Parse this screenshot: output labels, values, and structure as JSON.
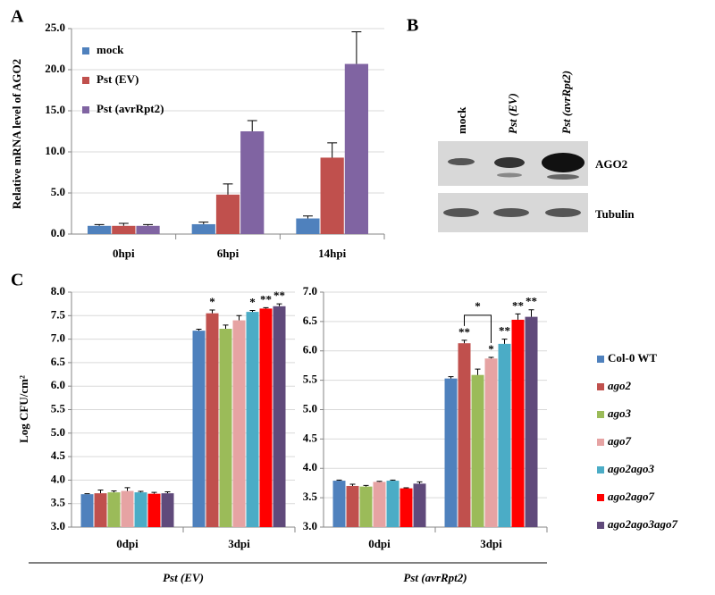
{
  "chart_data": [
    {
      "type": "bar",
      "panel_label": "A",
      "y_label": "Relative mRNA level of AGO2",
      "categories": [
        "0hpi",
        "6hpi",
        "14hpi"
      ],
      "series": [
        {
          "name": "mock",
          "color": "#4f81bd",
          "values": [
            1.0,
            1.2,
            1.9
          ],
          "errors": [
            0.15,
            0.25,
            0.3
          ]
        },
        {
          "name": "Pst (EV)",
          "color": "#c0504d",
          "values": [
            1.0,
            4.8,
            9.3
          ],
          "errors": [
            0.3,
            1.3,
            1.8
          ]
        },
        {
          "name": "Pst (avrRpt2)",
          "color": "#8064a2",
          "values": [
            1.0,
            12.5,
            20.7
          ],
          "errors": [
            0.15,
            1.3,
            3.9
          ]
        }
      ],
      "ylim": [
        0,
        25
      ],
      "yticks": [
        {
          "value": 0,
          "label": "0.0"
        },
        {
          "value": 5,
          "label": "5.0"
        },
        {
          "value": 10,
          "label": "10.0"
        },
        {
          "value": 15,
          "label": "15.0"
        },
        {
          "value": 20,
          "label": "20.0"
        },
        {
          "value": 25,
          "label": "25.0"
        }
      ],
      "grid": true,
      "legend": "upper left"
    },
    {
      "type": "bar",
      "panel_label": "C",
      "y_label": "Log CFU/cm²",
      "group_label": "Pst (EV)",
      "categories": [
        "0dpi",
        "3dpi"
      ],
      "series": [
        {
          "color": "#4f81bd",
          "values": [
            3.7,
            7.18
          ],
          "errors": [
            0.01,
            0.03
          ],
          "significance": [
            null,
            null
          ]
        },
        {
          "color": "#c0504d",
          "values": [
            3.72,
            7.55
          ],
          "errors": [
            0.07,
            0.07
          ],
          "significance": [
            null,
            "*"
          ]
        },
        {
          "color": "#9bbb59",
          "values": [
            3.74,
            7.22
          ],
          "errors": [
            0.03,
            0.08
          ],
          "significance": [
            null,
            null
          ]
        },
        {
          "color": "#e6a3a3",
          "values": [
            3.77,
            7.4
          ],
          "errors": [
            0.07,
            0.1
          ],
          "significance": [
            null,
            null
          ]
        },
        {
          "color": "#4bacc6",
          "values": [
            3.74,
            7.58
          ],
          "errors": [
            0.02,
            0.03
          ],
          "significance": [
            null,
            "*"
          ]
        },
        {
          "color": "#ff0000",
          "values": [
            3.71,
            7.65
          ],
          "errors": [
            0.03,
            0.02
          ],
          "significance": [
            null,
            "**"
          ]
        },
        {
          "color": "#604a7b",
          "values": [
            3.72,
            7.7
          ],
          "errors": [
            0.03,
            0.05
          ],
          "significance": [
            null,
            "**"
          ]
        }
      ],
      "ylim": [
        3.0,
        8.0
      ],
      "yticks": [
        {
          "value": 3,
          "label": "3.0"
        },
        3.5,
        {
          "value": 4,
          "label": "4.0"
        },
        4.5,
        {
          "value": 5,
          "label": "5.0"
        },
        5.5,
        {
          "value": 6,
          "label": "6.0"
        },
        6.5,
        {
          "value": 7,
          "label": "7.0"
        },
        7.5,
        {
          "value": 8,
          "label": "8.0"
        }
      ],
      "grid": true
    },
    {
      "type": "bar",
      "group_label": "Pst (avrRpt2)",
      "bracket_label": "*",
      "categories": [
        "0dpi",
        "3dpi"
      ],
      "series": [
        {
          "name": "Col-0 WT",
          "color": "#4f81bd",
          "values": [
            3.79,
            5.53
          ],
          "errors": [
            0.01,
            0.03
          ],
          "significance": [
            null,
            null
          ]
        },
        {
          "name": "ago2",
          "color": "#c0504d",
          "values": [
            3.7,
            6.13
          ],
          "errors": [
            0.03,
            0.05
          ],
          "significance": [
            null,
            "**"
          ]
        },
        {
          "name": "ago3",
          "color": "#9bbb59",
          "values": [
            3.69,
            5.59
          ],
          "errors": [
            0.02,
            0.1
          ],
          "significance": [
            null,
            null
          ]
        },
        {
          "name": "ago7",
          "color": "#e6a3a3",
          "values": [
            3.77,
            5.87
          ],
          "errors": [
            0.01,
            0.02
          ],
          "significance": [
            null,
            "*"
          ]
        },
        {
          "name": "ago2ago3",
          "color": "#4bacc6",
          "values": [
            3.79,
            6.12
          ],
          "errors": [
            0.01,
            0.08
          ],
          "significance": [
            null,
            "**"
          ]
        },
        {
          "name": "ago2ago7",
          "color": "#ff0000",
          "values": [
            3.66,
            6.53
          ],
          "errors": [
            0.01,
            0.1
          ],
          "significance": [
            null,
            "**"
          ]
        },
        {
          "name": "ago2ago3ago7",
          "color": "#604a7b",
          "values": [
            3.74,
            6.58
          ],
          "errors": [
            0.03,
            0.12
          ],
          "significance": [
            null,
            "**"
          ]
        }
      ],
      "ylim": [
        3.0,
        7.0
      ],
      "yticks": [
        {
          "value": 3,
          "label": "3.0"
        },
        3.5,
        {
          "value": 4,
          "label": "4.0"
        },
        4.5,
        {
          "value": 5,
          "label": "5.0"
        },
        5.5,
        {
          "value": 6,
          "label": "6.0"
        },
        6.5,
        {
          "value": 7,
          "label": "7.0"
        }
      ],
      "grid": true,
      "legend": "outside right"
    }
  ],
  "blot": {
    "panel_label": "B",
    "lanes": [
      "mock",
      "Pst (EV)",
      "Pst (avrRpt2)"
    ],
    "rows": [
      "AGO2",
      "Tubulin"
    ]
  }
}
